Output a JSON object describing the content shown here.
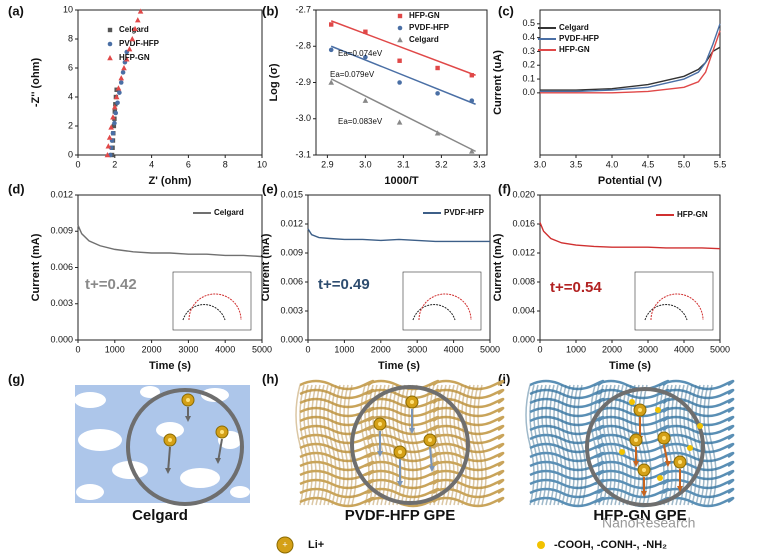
{
  "chart_data": [
    {
      "type": "scatter",
      "label": "(a)",
      "xlabel": "Z' (ohm)",
      "ylabel": "-Z'' (ohm)",
      "xlim": [
        0,
        10
      ],
      "xticks": [
        0,
        2,
        4,
        6,
        8,
        10
      ],
      "ylim": [
        0,
        10
      ],
      "yticks": [
        0,
        2,
        4,
        6,
        8,
        10
      ],
      "series": [
        {
          "name": "Celgard",
          "color": "#555555",
          "marker": "square",
          "x": [
            1.85,
            1.88,
            1.9,
            1.92,
            1.95,
            1.98,
            2.0,
            2.03,
            2.06,
            2.1
          ],
          "values": [
            0,
            0.5,
            1,
            1.5,
            2,
            2.5,
            3,
            3.5,
            4,
            4.5
          ]
        },
        {
          "name": "PVDF-HFP",
          "color": "#4a6fa5",
          "marker": "circle",
          "x": [
            1.75,
            1.8,
            1.85,
            1.9,
            1.98,
            2.05,
            2.15,
            2.25,
            2.35,
            2.45,
            2.55,
            2.65
          ],
          "values": [
            0,
            0.5,
            1,
            1.5,
            2.2,
            2.9,
            3.6,
            4.3,
            5,
            5.7,
            6.4,
            7.1
          ]
        },
        {
          "name": "HFP-GN",
          "color": "#e04848",
          "marker": "triangle",
          "x": [
            1.6,
            1.65,
            1.72,
            1.8,
            1.9,
            2.0,
            2.1,
            2.2,
            2.35,
            2.5,
            2.65,
            2.8,
            2.95,
            3.1,
            3.25,
            3.4
          ],
          "values": [
            0,
            0.6,
            1.2,
            1.9,
            2.6,
            3.3,
            4,
            4.6,
            5.3,
            6,
            6.6,
            7.3,
            8,
            8.7,
            9.3,
            9.9
          ]
        }
      ]
    },
    {
      "type": "scatter",
      "label": "(b)",
      "xlabel": "1000/T",
      "ylabel": "Log (σ)",
      "xlim": [
        2.87,
        3.32
      ],
      "xticks": [
        2.9,
        {
          "value": 3,
          "label": "3.0"
        },
        3.1,
        3.2,
        3.3
      ],
      "ylim": [
        -3.1,
        -2.7
      ],
      "yticks": [
        -2.7,
        -2.8,
        -2.9,
        {
          "value": -3,
          "label": "-3.0"
        },
        -3.1
      ],
      "x": [
        2.91,
        3.0,
        3.09,
        3.19,
        3.28
      ],
      "annotations": [
        "Ea=0.074eV",
        "Ea=0.079eV",
        "Ea=0.083eV"
      ],
      "fit_x": [
        2.91,
        3.29
      ],
      "series": [
        {
          "name": "HFP-GN",
          "color": "#e04848",
          "marker": "square",
          "values": [
            -2.74,
            -2.76,
            -2.84,
            -2.86,
            -2.88
          ],
          "fit": [
            -2.73,
            -2.88
          ]
        },
        {
          "name": "PVDF-HFP",
          "color": "#4a6fa5",
          "marker": "circle",
          "values": [
            -2.81,
            -2.83,
            -2.9,
            -2.93,
            -2.95
          ],
          "fit": [
            -2.8,
            -2.96
          ]
        },
        {
          "name": "Celgard",
          "color": "#888888",
          "marker": "triangle",
          "values": [
            -2.9,
            -2.95,
            -3.01,
            -3.04,
            -3.09
          ],
          "fit": [
            -2.89,
            -3.09
          ]
        }
      ]
    },
    {
      "type": "line",
      "label": "(c)",
      "xlabel": "Potential (V)",
      "ylabel": "Current (uA)",
      "xlim": [
        3,
        5.5
      ],
      "xticks": [
        {
          "value": 3,
          "label": "3.0"
        },
        3.5,
        {
          "value": 4,
          "label": "4.0"
        },
        4.5,
        {
          "value": 5,
          "label": "5.0"
        },
        5.5
      ],
      "ylim": [
        -0.45,
        0.6
      ],
      "yticks": [
        {
          "value": 0,
          "label": "0.0"
        },
        0.1,
        0.2,
        0.3,
        0.4,
        0.5
      ],
      "x": [
        3.0,
        3.5,
        4.0,
        4.5,
        5.0,
        5.2,
        5.3,
        5.4,
        5.5
      ],
      "series": [
        {
          "name": "Celgard",
          "color": "#333333",
          "values": [
            0.02,
            0.02,
            0.03,
            0.06,
            0.12,
            0.17,
            0.22,
            0.3,
            0.33
          ]
        },
        {
          "name": "PVDF-HFP",
          "color": "#4a6fa5",
          "values": [
            0.01,
            0.01,
            0.02,
            0.04,
            0.1,
            0.15,
            0.22,
            0.35,
            0.5
          ]
        },
        {
          "name": "HFP-GN",
          "color": "#e04848",
          "values": [
            0,
            0,
            0,
            0.01,
            0.04,
            0.08,
            0.15,
            0.3,
            0.45
          ]
        }
      ]
    },
    {
      "type": "line",
      "label": "(d)",
      "xlabel": "Time (s)",
      "ylabel": "Current (mA)",
      "xlim": [
        0,
        5000
      ],
      "xticks": [
        0,
        1000,
        2000,
        3000,
        4000,
        5000
      ],
      "ylim": [
        0,
        0.012
      ],
      "yticks": [
        {
          "value": 0,
          "label": "0.000"
        },
        0.003,
        0.006,
        0.009,
        0.012
      ],
      "x": [
        0,
        100,
        300,
        600,
        1000,
        1500,
        2000,
        2500,
        3000,
        3500,
        4000,
        4500,
        5000
      ],
      "annotations": [
        "t+=0.42"
      ],
      "annotation_color": "#8a8a8a",
      "series": [
        {
          "name": "Celgard",
          "color": "#707070",
          "values": [
            0.0095,
            0.0088,
            0.0082,
            0.0078,
            0.0075,
            0.0073,
            0.0072,
            0.0072,
            0.0071,
            0.0071,
            0.007,
            0.007,
            0.0069
          ]
        }
      ]
    },
    {
      "type": "line",
      "label": "(e)",
      "xlabel": "Time (s)",
      "ylabel": "Current (mA)",
      "xlim": [
        0,
        5000
      ],
      "xticks": [
        0,
        1000,
        2000,
        3000,
        4000,
        5000
      ],
      "ylim": [
        0,
        0.015
      ],
      "yticks": [
        {
          "value": 0,
          "label": "0.000"
        },
        0.003,
        0.006,
        0.009,
        0.012,
        0.015
      ],
      "x": [
        0,
        100,
        300,
        600,
        1000,
        1500,
        2000,
        2500,
        3000,
        3500,
        4000,
        4500,
        5000
      ],
      "annotations": [
        "t+=0.49"
      ],
      "annotation_color": "#2e4d70",
      "series": [
        {
          "name": "PVDF-HFP",
          "color": "#3d5f88",
          "values": [
            0.0115,
            0.0109,
            0.0106,
            0.0105,
            0.0104,
            0.0104,
            0.0103,
            0.0104,
            0.0103,
            0.0102,
            0.0102,
            0.0102,
            0.0102
          ]
        }
      ]
    },
    {
      "type": "line",
      "label": "(f)",
      "xlabel": "Time (s)",
      "ylabel": "Current (mA)",
      "xlim": [
        0,
        5000
      ],
      "xticks": [
        0,
        1000,
        2000,
        3000,
        4000,
        5000
      ],
      "ylim": [
        0,
        0.02
      ],
      "yticks": [
        {
          "value": 0,
          "label": "0.000"
        },
        0.004,
        0.008,
        0.012,
        0.016,
        {
          "value": 0.02,
          "label": "0.020"
        }
      ],
      "x": [
        0,
        100,
        300,
        600,
        1000,
        1500,
        2000,
        2500,
        3000,
        3500,
        4000,
        4500,
        5000
      ],
      "annotations": [
        "t+=0.54"
      ],
      "annotation_color": "#b22222",
      "series": [
        {
          "name": "HFP-GN",
          "color": "#d03030",
          "values": [
            0.0162,
            0.015,
            0.014,
            0.0134,
            0.0131,
            0.0129,
            0.0128,
            0.0128,
            0.0128,
            0.0127,
            0.0127,
            0.0127,
            0.0126
          ]
        }
      ]
    }
  ],
  "illustrations": [
    {
      "label": "(g)",
      "caption": "Celgard"
    },
    {
      "label": "(h)",
      "caption": "PVDF-HFP GPE"
    },
    {
      "label": "(i)",
      "caption": "HFP-GN GPE"
    }
  ],
  "key": {
    "ion": "Li+",
    "groups": "-COOH, -CONH-, -NH₂"
  },
  "watermark": "NanoResearch"
}
